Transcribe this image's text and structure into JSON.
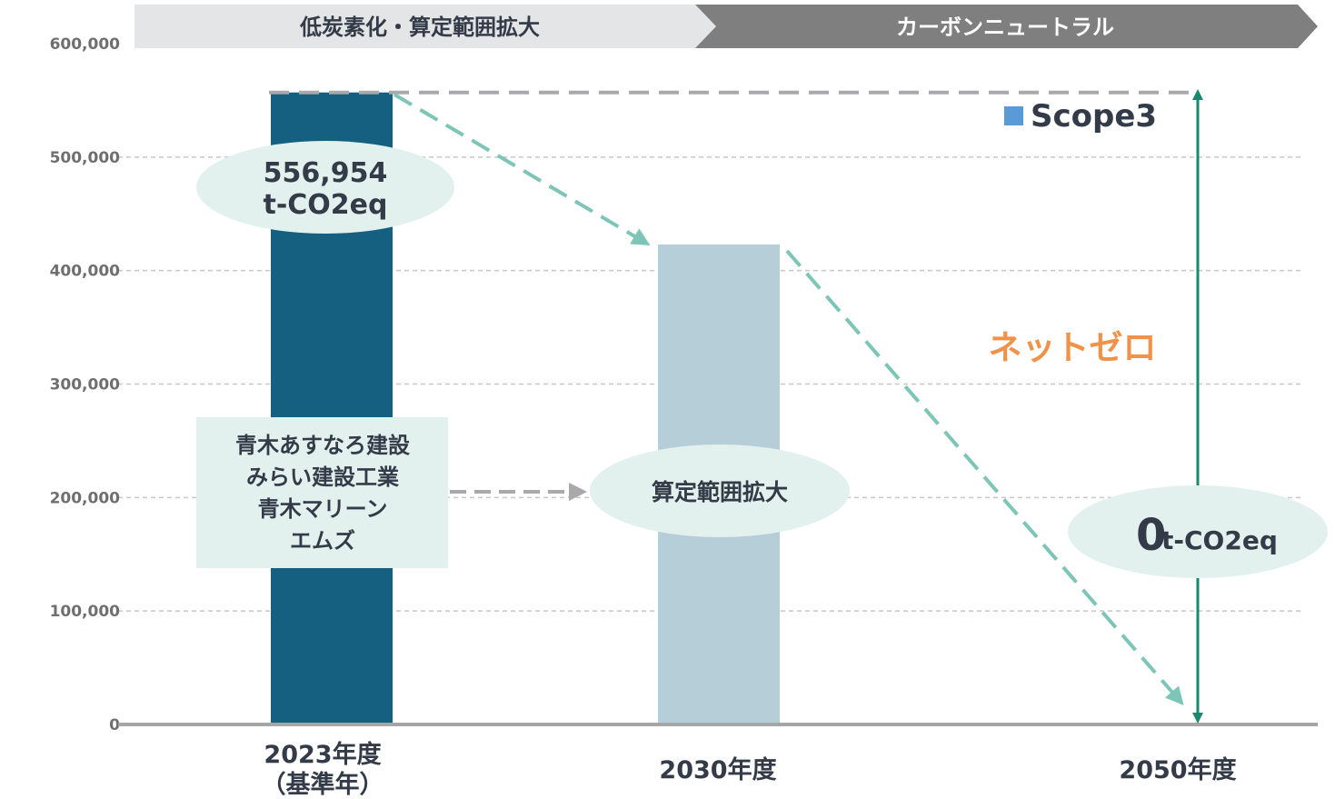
{
  "colors": {
    "base_bar": "#155f80",
    "target_bar": "#b6ced8",
    "phase1_bg": "#e4e5e7",
    "phase2_bg": "#7f7f7f",
    "teal": "#7dc5b6",
    "arrow_green": "#1a8a6e",
    "ellipse": "#e3f1ee",
    "gray_dash": "#a9a9ab",
    "net_zero": "#f0924a",
    "legend": "#5b9bd5",
    "text": "#333b48"
  },
  "phases": [
    "低炭素化・算定範囲拡大",
    "カーボンニュートラル"
  ],
  "chart_data": {
    "type": "bar",
    "title": "",
    "categories": [
      "2023年度",
      "2030年度",
      "2050年度"
    ],
    "category_notes": [
      "（基準年）",
      "",
      ""
    ],
    "series": [
      {
        "name": "Scope3",
        "values": [
          556954,
          423000,
          0
        ]
      }
    ],
    "ylim": [
      0,
      600000
    ],
    "yticks": [
      0,
      100000,
      200000,
      300000,
      400000,
      500000,
      600000
    ],
    "ytick_labels": [
      "0",
      "100,000",
      "200,000",
      "300,000",
      "400,000",
      "500,000",
      "600,000"
    ],
    "grid": true,
    "legend_label": "Scope3"
  },
  "annotations": {
    "base_value_line1": "556,954",
    "base_value_line2": "t-CO2eq",
    "companies": [
      "青木あすなろ建設",
      "みらい建設工業",
      "青木マリーン",
      "エムズ"
    ],
    "scope_expansion": "算定範囲拡大",
    "net_zero": "ネットゼロ",
    "zero_value": "0",
    "zero_unit": "t-CO2eq"
  }
}
